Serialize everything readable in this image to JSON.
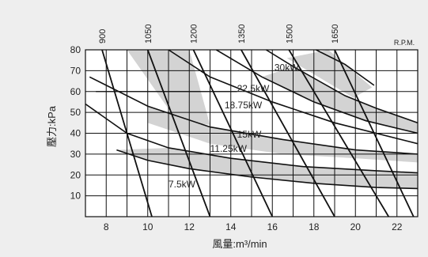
{
  "chart_data": {
    "type": "line",
    "title": "",
    "xlabel": "風量:m³/min",
    "ylabel": "壓力:kPa",
    "xlim": [
      7,
      23
    ],
    "ylim": [
      0,
      80
    ],
    "x_ticks": [
      "8",
      "10",
      "12",
      "14",
      "16",
      "18",
      "20",
      "22"
    ],
    "y_ticks": [
      "10",
      "20",
      "30",
      "40",
      "50",
      "60",
      "70",
      "80"
    ],
    "grid": true,
    "rpm_unit_label": "R.P.M.",
    "rpm_lines": [
      {
        "label": "900",
        "x": [
          7.8,
          10.2
        ]
      },
      {
        "label": "1050",
        "x": [
          10.0,
          13.0
        ]
      },
      {
        "label": "1200",
        "x": [
          12.2,
          16.0
        ]
      },
      {
        "label": "1350",
        "x": [
          14.5,
          19.0
        ]
      },
      {
        "label": "1500",
        "x": [
          16.8,
          21.6
        ]
      },
      {
        "label": "1650",
        "x": [
          19.0,
          22.8
        ]
      }
    ],
    "power_curves": [
      {
        "name": "30kW",
        "points": [
          [
            18.1,
            80
          ],
          [
            19.5,
            73
          ],
          [
            20.9,
            63
          ]
        ]
      },
      {
        "name": "22.5kW",
        "points": [
          [
            15.7,
            80
          ],
          [
            17.0,
            72
          ],
          [
            19.5,
            58
          ],
          [
            21.0,
            52
          ],
          [
            23.0,
            45
          ]
        ]
      },
      {
        "name": "18.75kW",
        "points": [
          [
            13.3,
            80
          ],
          [
            15.5,
            67
          ],
          [
            18.0,
            55
          ],
          [
            20.5,
            46
          ],
          [
            23.0,
            40
          ]
        ]
      },
      {
        "name": "15kW",
        "points": [
          [
            11.0,
            80
          ],
          [
            13.0,
            67
          ],
          [
            16.0,
            55
          ],
          [
            19.0,
            45
          ],
          [
            23.0,
            35
          ]
        ]
      },
      {
        "name": "11.25kW",
        "points": [
          [
            7.2,
            67
          ],
          [
            10.0,
            53
          ],
          [
            13.0,
            43
          ],
          [
            16.5,
            37
          ],
          [
            20.0,
            32
          ],
          [
            23.0,
            30
          ]
        ]
      },
      {
        "name": "7.5kW",
        "points": [
          [
            7.0,
            54
          ],
          [
            9.0,
            40
          ],
          [
            11.0,
            33
          ],
          [
            14.0,
            28
          ],
          [
            17.5,
            24
          ],
          [
            21.0,
            22
          ],
          [
            23.0,
            21
          ]
        ]
      }
    ],
    "lower_boundary": [
      [
        8.5,
        32
      ],
      [
        10.0,
        27
      ],
      [
        12.0,
        23
      ],
      [
        15.0,
        19
      ],
      [
        18.0,
        16
      ],
      [
        21.0,
        14
      ],
      [
        23.0,
        13.5
      ]
    ],
    "operating_bands": [
      {
        "series": "1050",
        "points": [
          [
            9.0,
            80
          ],
          [
            12.0,
            80
          ],
          [
            13.0,
            44
          ],
          [
            11.4,
            46
          ]
        ]
      },
      {
        "series": "1500",
        "points": [
          [
            16.7,
            76
          ],
          [
            18.7,
            80
          ],
          [
            20.8,
            62
          ],
          [
            19.9,
            57
          ]
        ]
      },
      {
        "series": "22.5kW",
        "points": [
          [
            17.0,
            72
          ],
          [
            19.5,
            58
          ],
          [
            21.0,
            52
          ],
          [
            23.0,
            45
          ],
          [
            23.0,
            40
          ],
          [
            20.5,
            46
          ],
          [
            18.0,
            55
          ],
          [
            15.5,
            67
          ]
        ]
      },
      {
        "series": "15kW",
        "points": [
          [
            10.0,
            53
          ],
          [
            13.0,
            43
          ],
          [
            16.5,
            37
          ],
          [
            20.0,
            32
          ],
          [
            23.0,
            30
          ],
          [
            23.0,
            26
          ],
          [
            20.0,
            28
          ],
          [
            16.5,
            30
          ],
          [
            13.0,
            35
          ],
          [
            10.0,
            45
          ]
        ]
      },
      {
        "series": "7.5kW",
        "points": [
          [
            8.5,
            32
          ],
          [
            11.0,
            33
          ],
          [
            14.0,
            28
          ],
          [
            17.5,
            24
          ],
          [
            21.0,
            22
          ],
          [
            23.0,
            21
          ],
          [
            23.0,
            13.5
          ],
          [
            21.0,
            14
          ],
          [
            18.0,
            16
          ],
          [
            15.0,
            19
          ],
          [
            12.0,
            23
          ],
          [
            10.0,
            27
          ]
        ]
      }
    ]
  },
  "colors": {
    "background": "#eeeeee",
    "plot_area": "#ffffff",
    "band_fill": "#d3d3d3",
    "line": "#111111"
  }
}
